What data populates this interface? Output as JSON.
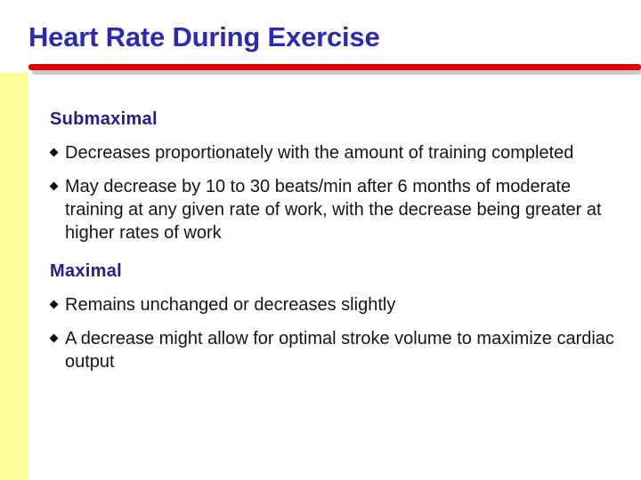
{
  "slide": {
    "title": "Heart Rate During Exercise",
    "sections": [
      {
        "heading": "Submaximal",
        "bullets": [
          "Decreases proportionately with the amount of training completed",
          "May decrease by 10 to 30 beats/min after 6 months of moderate training at any given rate of work, with the decrease being greater at higher rates of work"
        ]
      },
      {
        "heading": "Maximal",
        "bullets": [
          "Remains unchanged or decreases slightly",
          "A decrease might allow for optimal stroke volume to maximize cardiac output"
        ]
      }
    ],
    "colors": {
      "title": "#2a2ab5",
      "heading": "#1f1f8f",
      "rule": "#e00000",
      "left_stripe": "#ffff99"
    },
    "icons": {
      "bullet": "diamond-bullet-icon"
    }
  }
}
